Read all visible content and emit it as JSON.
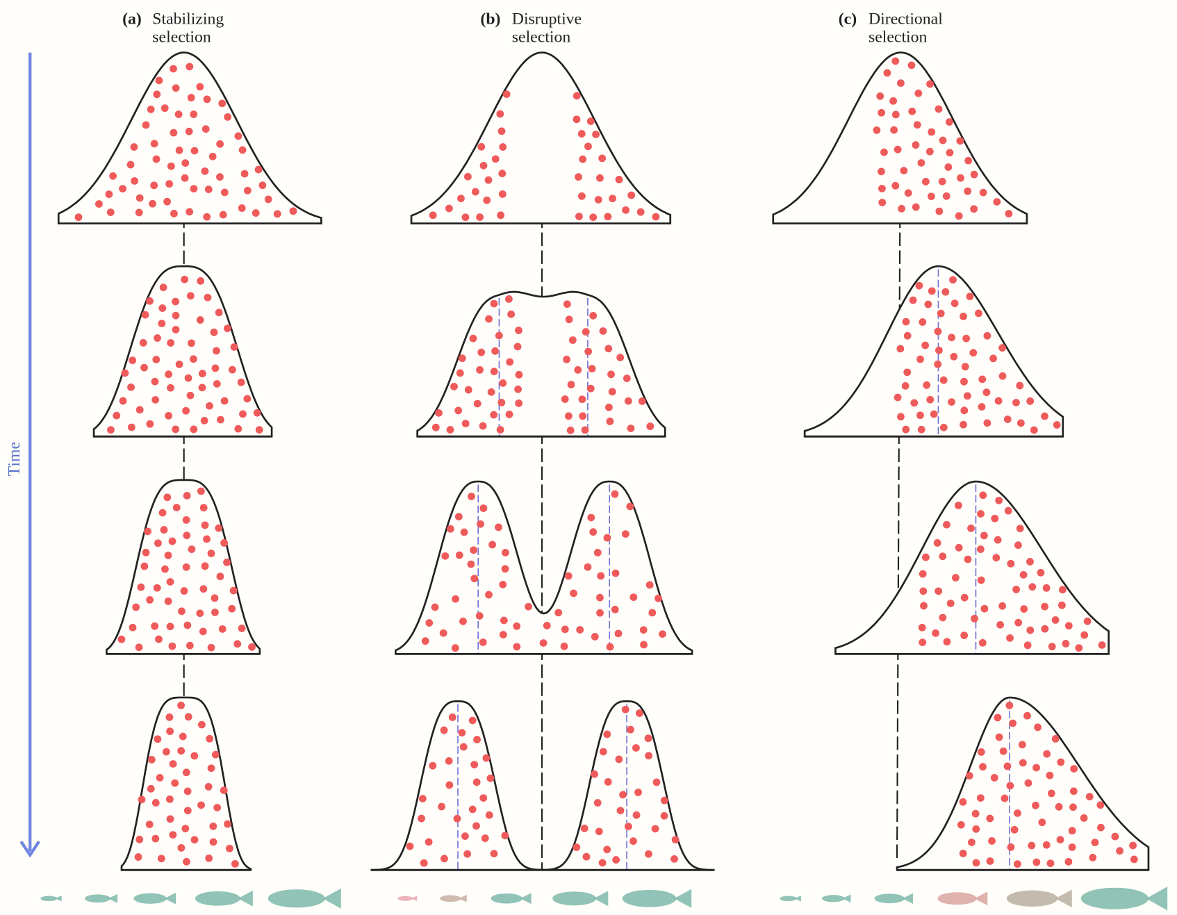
{
  "panels": [
    {
      "label": "(a)",
      "title_line1": "Stabilizing",
      "title_line2": "selection"
    },
    {
      "label": "(b)",
      "title_line1": "Disruptive",
      "title_line2": "selection"
    },
    {
      "label": "(c)",
      "title_line1": "Directional",
      "title_line2": "selection"
    }
  ],
  "axis_label": "Time"
}
